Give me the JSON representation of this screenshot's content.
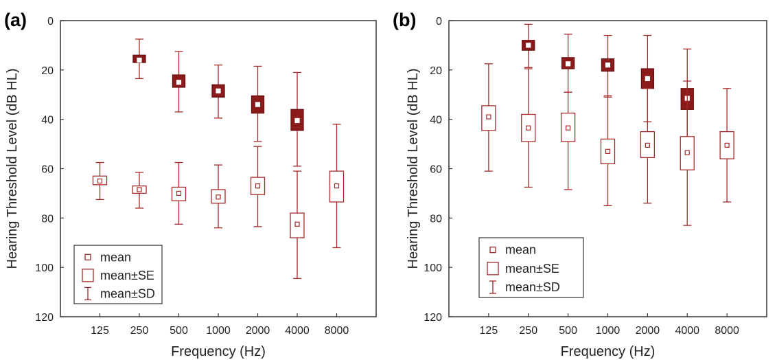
{
  "chart_data": [
    {
      "panel_label": "(a)",
      "type": "box",
      "xlabel": "Frequency (Hz)",
      "ylabel": "Hearing Threshold Level (dB HL)",
      "ylim": [
        0,
        120
      ],
      "y_inverted": true,
      "yticks": [
        0,
        20,
        40,
        60,
        80,
        100,
        120
      ],
      "categories": [
        "125",
        "250",
        "500",
        "1000",
        "2000",
        "4000",
        "8000"
      ],
      "legend": {
        "position": "bottom-left",
        "entries": [
          "mean",
          "mean±SE",
          "mean±SD"
        ]
      },
      "series": [
        {
          "fill": "#8b1a1a",
          "points": [
            {
              "x": "250",
              "mean": 16,
              "se_low": 14,
              "se_high": 17,
              "sd_low": 7.5,
              "sd_high": 23.5
            },
            {
              "x": "500",
              "mean": 25,
              "se_low": 22,
              "se_high": 27,
              "sd_low": 12.5,
              "sd_high": 37
            },
            {
              "x": "1000",
              "mean": 28.5,
              "se_low": 26,
              "se_high": 31,
              "sd_low": 18,
              "sd_high": 39.5
            },
            {
              "x": "2000",
              "mean": 34,
              "se_low": 30.5,
              "se_high": 37.5,
              "sd_low": 18.5,
              "sd_high": 49
            },
            {
              "x": "4000",
              "mean": 40.5,
              "se_low": 36,
              "se_high": 44.5,
              "sd_low": 21,
              "sd_high": 59
            }
          ]
        },
        {
          "fill": "none",
          "points": [
            {
              "x": "125",
              "mean": 65,
              "se_low": 63,
              "se_high": 66.5,
              "sd_low": 57.5,
              "sd_high": 72.5
            },
            {
              "x": "250",
              "mean": 68.5,
              "se_low": 67,
              "se_high": 70,
              "sd_low": 61.5,
              "sd_high": 76
            },
            {
              "x": "500",
              "mean": 70,
              "se_low": 67.5,
              "se_high": 73,
              "sd_low": 57.5,
              "sd_high": 82.5
            },
            {
              "x": "1000",
              "mean": 71.5,
              "se_low": 68.5,
              "se_high": 74,
              "sd_low": 58.5,
              "sd_high": 84
            },
            {
              "x": "2000",
              "mean": 67,
              "se_low": 63.5,
              "se_high": 70.5,
              "sd_low": 51,
              "sd_high": 83.5
            },
            {
              "x": "4000",
              "mean": 82.5,
              "se_low": 78,
              "se_high": 88,
              "sd_low": 61,
              "sd_high": 104.5
            },
            {
              "x": "8000",
              "mean": 67,
              "se_low": 61,
              "se_high": 73.5,
              "sd_low": 42,
              "sd_high": 92
            }
          ]
        }
      ]
    },
    {
      "panel_label": "(b)",
      "type": "box",
      "xlabel": "Frequency (Hz)",
      "ylabel": "Hearing Threshold Level (dB HL)",
      "ylim": [
        0,
        120
      ],
      "y_inverted": true,
      "yticks": [
        0,
        20,
        40,
        60,
        80,
        100,
        120
      ],
      "categories": [
        "125",
        "250",
        "500",
        "1000",
        "2000",
        "4000",
        "8000"
      ],
      "legend": {
        "position": "bottom-left",
        "entries": [
          "mean",
          "mean±SE",
          "mean±SD"
        ]
      },
      "series": [
        {
          "fill": "#8b1a1a",
          "points": [
            {
              "x": "250",
              "mean": 10,
              "se_low": 8,
              "se_high": 12,
              "sd_low": 1.5,
              "sd_high": 19
            },
            {
              "x": "500",
              "mean": 17.5,
              "se_low": 15,
              "se_high": 19.5,
              "sd_low": 5.5,
              "sd_high": 29
            },
            {
              "x": "1000",
              "mean": 18,
              "se_low": 15.5,
              "se_high": 20.5,
              "sd_low": 6,
              "sd_high": 31
            },
            {
              "x": "2000",
              "mean": 23.5,
              "se_low": 19.5,
              "se_high": 27.5,
              "sd_low": 6,
              "sd_high": 41
            },
            {
              "x": "4000",
              "mean": 31.5,
              "se_low": 27.5,
              "se_high": 36,
              "sd_low": 11.5,
              "sd_high": 52
            }
          ]
        },
        {
          "fill": "none",
          "points": [
            {
              "x": "125",
              "mean": 39,
              "se_low": 34.5,
              "se_high": 44.5,
              "sd_low": 17.5,
              "sd_high": 61
            },
            {
              "x": "250",
              "mean": 43.5,
              "se_low": 38,
              "se_high": 49,
              "sd_low": 19.5,
              "sd_high": 67.5
            },
            {
              "x": "500",
              "mean": 43.5,
              "se_low": 37.5,
              "se_high": 49,
              "sd_low": 29,
              "sd_high": 68.5
            },
            {
              "x": "1000",
              "mean": 53,
              "se_low": 48,
              "se_high": 58,
              "sd_low": 30.5,
              "sd_high": 75
            },
            {
              "x": "2000",
              "mean": 50.5,
              "se_low": 45,
              "se_high": 55.5,
              "sd_low": 27.5,
              "sd_high": 74
            },
            {
              "x": "4000",
              "mean": 53.5,
              "se_low": 47,
              "se_high": 60.5,
              "sd_low": 24.5,
              "sd_high": 83
            },
            {
              "x": "8000",
              "mean": 50.5,
              "se_low": 45,
              "se_high": 56,
              "sd_low": 27.5,
              "sd_high": 73.5
            }
          ]
        }
      ]
    }
  ]
}
